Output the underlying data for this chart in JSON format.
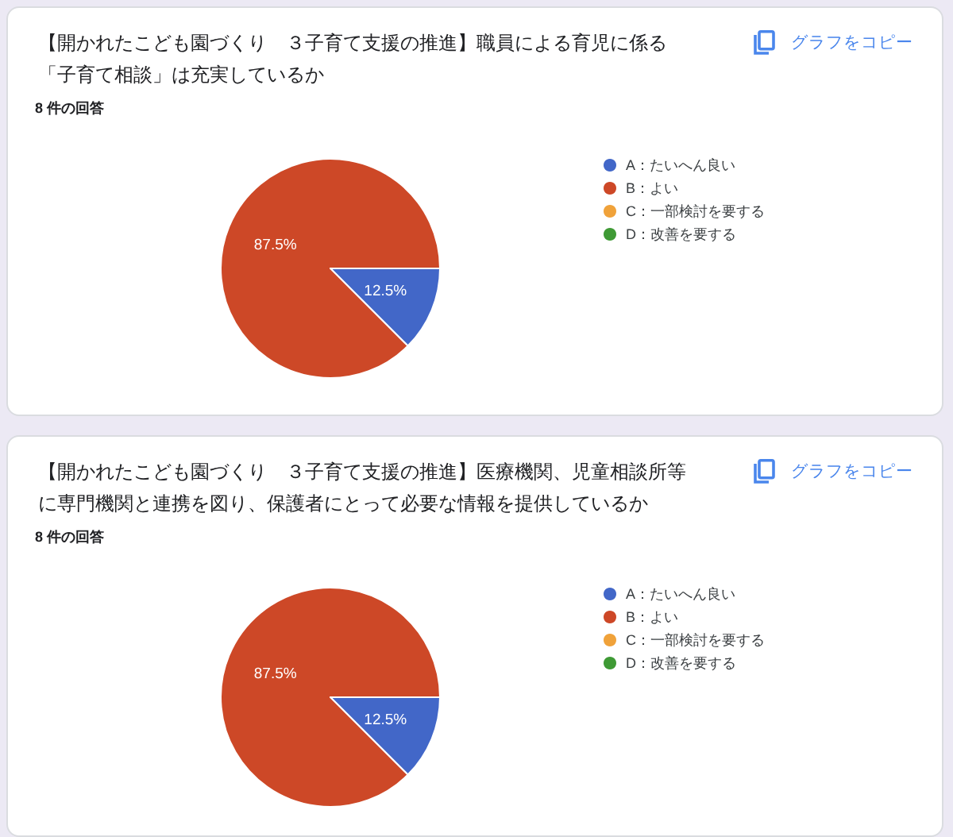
{
  "chart_data": [
    {
      "type": "pie",
      "title": "【開かれたこども園づくり　３子育て支援の推進】職員による育児に係る「子育て相談」は充実しているか",
      "subtitle": "8 件の回答",
      "annotations": [
        "グラフをコピー"
      ],
      "categories": [
        "A：たいへん良い",
        "B：よい",
        "C：一部検討を要する",
        "D：改善を要する"
      ],
      "values": [
        12.5,
        87.5,
        0,
        0
      ],
      "colors": [
        "#4267c8",
        "#cd4827",
        "#f0a23a",
        "#3f9a35"
      ],
      "value_labels": [
        "12.5%",
        "87.5%",
        null,
        null
      ],
      "legend": "right"
    },
    {
      "type": "pie",
      "title": "【開かれたこども園づくり　３子育て支援の推進】医療機関、児童相談所等に専門機関と連携を図り、保護者にとって必要な情報を提供しているか",
      "subtitle": "8 件の回答",
      "annotations": [
        "グラフをコピー"
      ],
      "categories": [
        "A：たいへん良い",
        "B：よい",
        "C：一部検討を要する",
        "D：改善を要する"
      ],
      "values": [
        12.5,
        87.5,
        0,
        0
      ],
      "colors": [
        "#4267c8",
        "#cd4827",
        "#f0a23a",
        "#3f9a35"
      ],
      "value_labels": [
        "12.5%",
        "87.5%",
        null,
        null
      ],
      "legend": "right"
    }
  ]
}
